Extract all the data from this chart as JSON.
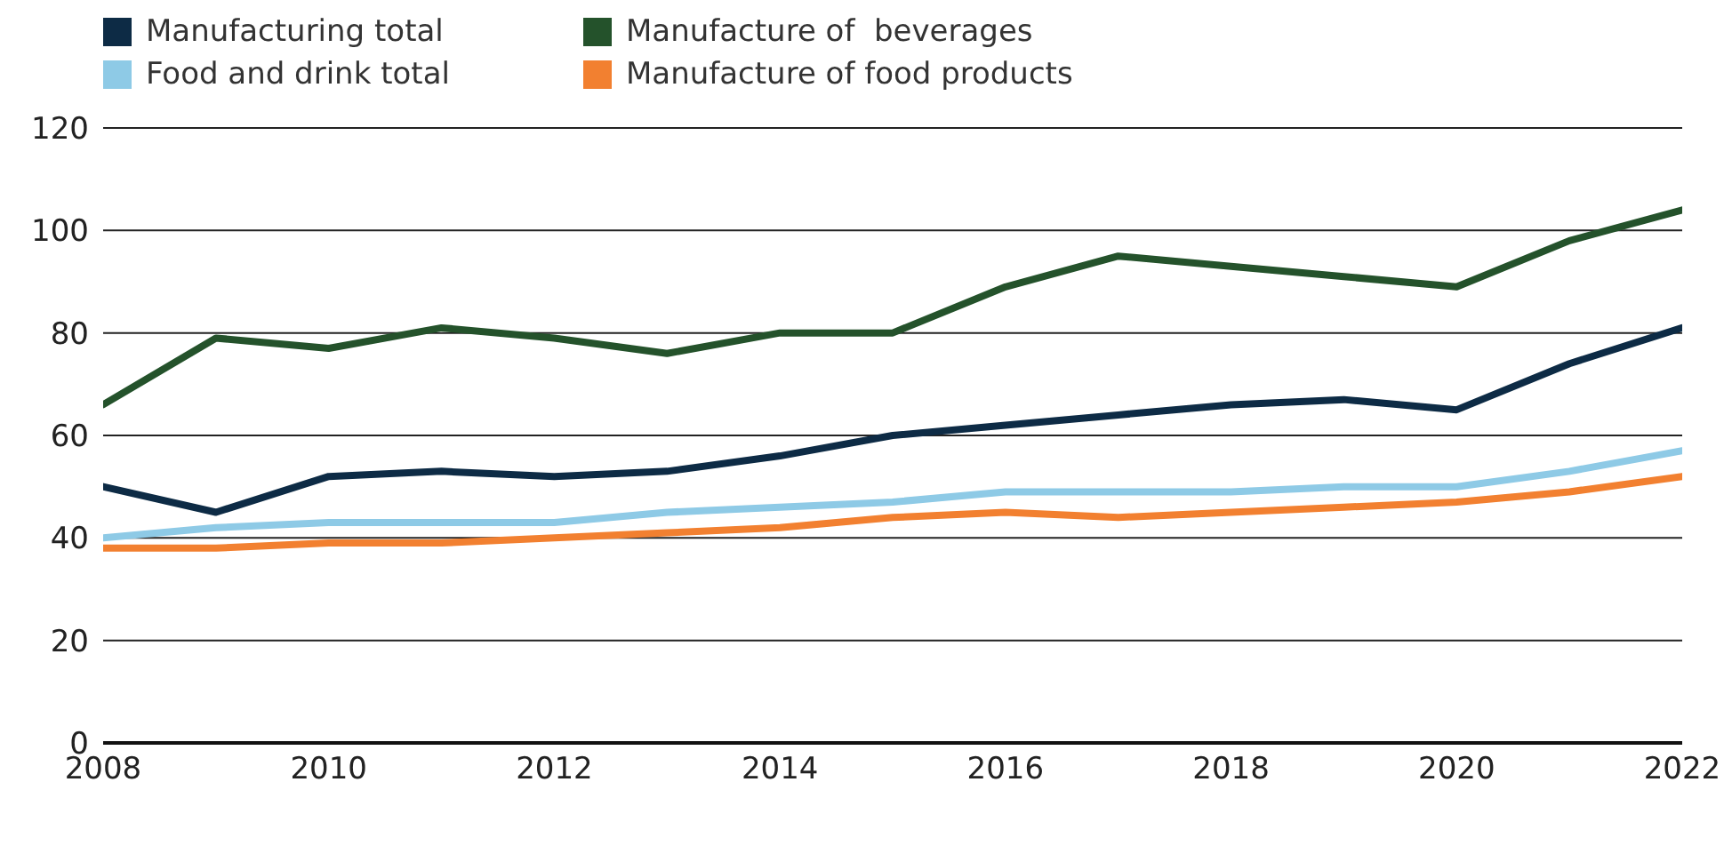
{
  "chart_data": {
    "type": "line",
    "x": [
      2008,
      2009,
      2010,
      2011,
      2012,
      2013,
      2014,
      2015,
      2016,
      2017,
      2018,
      2019,
      2020,
      2021,
      2022
    ],
    "series": [
      {
        "name": "Manufacturing total",
        "color": "#0d2b45",
        "values": [
          50,
          45,
          52,
          53,
          52,
          53,
          56,
          60,
          62,
          64,
          66,
          67,
          65,
          74,
          81
        ]
      },
      {
        "name": "Manufacture of  beverages",
        "color": "#24522b",
        "values": [
          66,
          79,
          77,
          81,
          79,
          76,
          80,
          80,
          89,
          95,
          93,
          91,
          89,
          98,
          104
        ]
      },
      {
        "name": "Food and drink total",
        "color": "#8ecae6",
        "values": [
          40,
          42,
          43,
          43,
          43,
          45,
          46,
          47,
          49,
          49,
          49,
          50,
          50,
          53,
          57
        ]
      },
      {
        "name": "Manufacture of food products",
        "color": "#f28030",
        "values": [
          38,
          38,
          39,
          39,
          40,
          41,
          42,
          44,
          45,
          44,
          45,
          46,
          47,
          49,
          52
        ]
      }
    ],
    "xlim": [
      2008,
      2022
    ],
    "xticks": [
      2008,
      2010,
      2012,
      2014,
      2016,
      2018,
      2020,
      2022
    ],
    "ylim": [
      0,
      120
    ],
    "yticks": [
      0,
      20,
      40,
      60,
      80,
      100,
      120
    ],
    "grid": "y",
    "legend": "top left",
    "marker": "none",
    "line_style": "solid"
  }
}
